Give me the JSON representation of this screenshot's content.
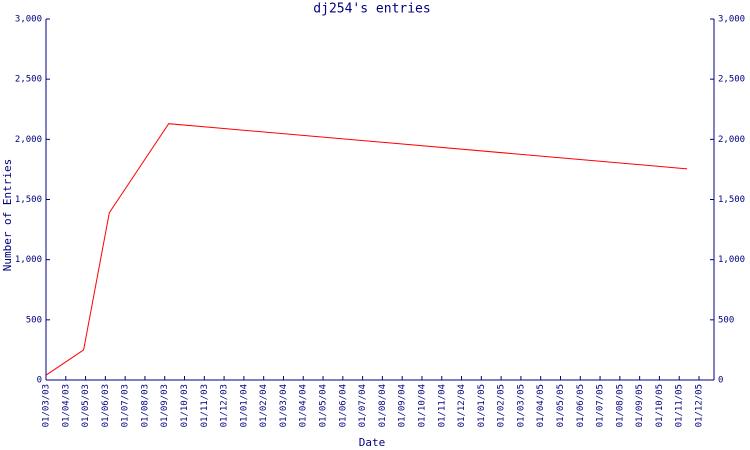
{
  "chart_data": {
    "type": "line",
    "title": "dj254's entries",
    "x_label": "Date",
    "y_label": "Number of Entries",
    "x": [
      "01/03/03",
      "28/04/03",
      "07/06/03",
      "07/09/03",
      "13/11/05"
    ],
    "values": [
      40,
      250,
      1390,
      2130,
      1755
    ],
    "color": "#ff0000",
    "axis_color": "#000080",
    "xlim": [
      "01/03/03",
      "01/12/05"
    ],
    "xticks": [
      "01/03/03",
      "01/04/03",
      "01/05/03",
      "01/06/03",
      "01/07/03",
      "01/08/03",
      "01/09/03",
      "01/10/03",
      "01/11/03",
      "01/12/03",
      "01/01/04",
      "01/02/04",
      "01/03/04",
      "01/04/04",
      "01/05/04",
      "01/06/04",
      "01/07/04",
      "01/08/04",
      "01/09/04",
      "01/10/04",
      "01/11/04",
      "01/12/04",
      "01/01/05",
      "01/02/05",
      "01/03/05",
      "01/04/05",
      "01/05/05",
      "01/06/05",
      "01/07/05",
      "01/08/05",
      "01/09/05",
      "01/10/05",
      "01/11/05",
      "01/12/05"
    ],
    "ylim": [
      0,
      3000
    ],
    "yticks": [
      0,
      500,
      {
        "value": 1000,
        "label": "1,000"
      },
      {
        "value": 1500,
        "label": "1,500"
      },
      {
        "value": 2000,
        "label": "2,000"
      },
      {
        "value": 2500,
        "label": "2,500"
      },
      {
        "value": 3000,
        "label": "3,000"
      }
    ],
    "grid": false
  }
}
